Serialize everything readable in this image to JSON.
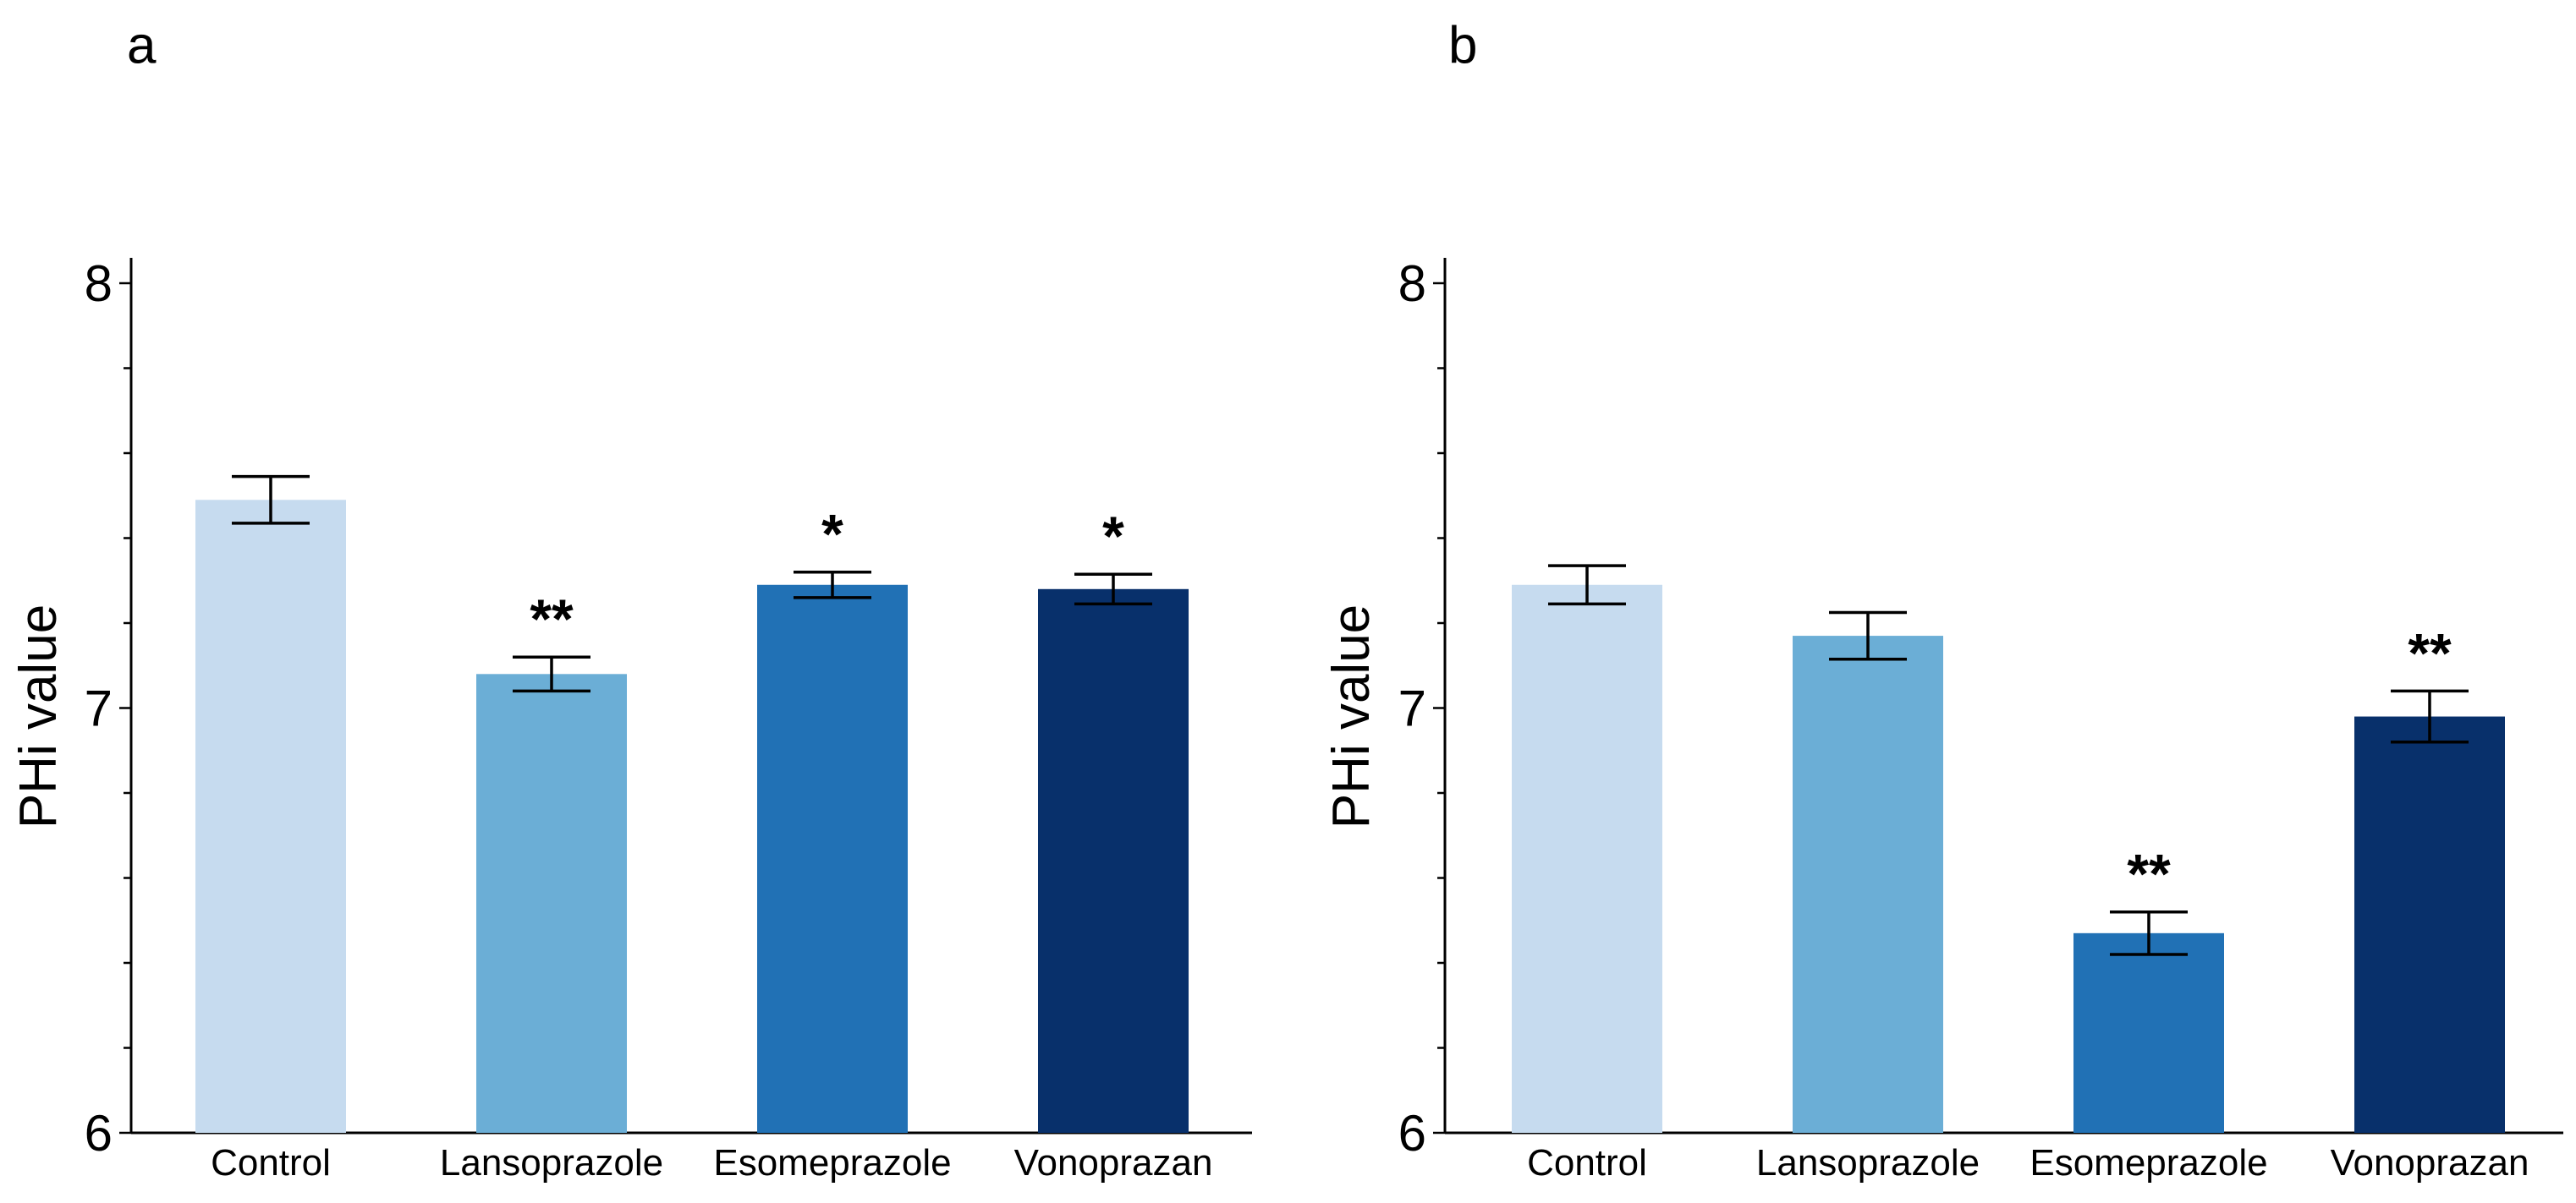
{
  "chart_data": [
    {
      "type": "bar",
      "panel_label": "a",
      "title": "",
      "xlabel": "",
      "ylabel": "PHi value",
      "ylim": [
        6,
        8
      ],
      "yticks": [
        6,
        7,
        8
      ],
      "yticks_labels": [
        "6",
        "7",
        "8"
      ],
      "minor_tick_step": 0.2,
      "categories": [
        "Control",
        "Lansoprazole",
        "Esomeprazole",
        "Vonoprazan"
      ],
      "values": [
        7.49,
        7.08,
        7.29,
        7.28
      ],
      "errors": [
        0.055,
        0.04,
        0.03,
        0.035
      ],
      "significance": [
        "",
        "**",
        "*",
        "*"
      ],
      "colors": [
        "#c6dbef",
        "#6baed6",
        "#2171b5",
        "#08306b"
      ]
    },
    {
      "type": "bar",
      "panel_label": "b",
      "title": "",
      "xlabel": "",
      "ylabel": "PHi value",
      "ylim": [
        6,
        8
      ],
      "yticks": [
        6,
        7,
        8
      ],
      "yticks_labels": [
        "6",
        "7",
        "8"
      ],
      "minor_tick_step": 0.2,
      "categories": [
        "Control",
        "Lansoprazole",
        "Esomeprazole",
        "Vonoprazan"
      ],
      "values": [
        7.29,
        7.17,
        6.47,
        6.98
      ],
      "errors": [
        0.045,
        0.055,
        0.05,
        0.06
      ],
      "significance": [
        "",
        "",
        "**",
        "**"
      ],
      "colors": [
        "#c6dbef",
        "#6baed6",
        "#2171b5",
        "#08306b"
      ]
    }
  ]
}
